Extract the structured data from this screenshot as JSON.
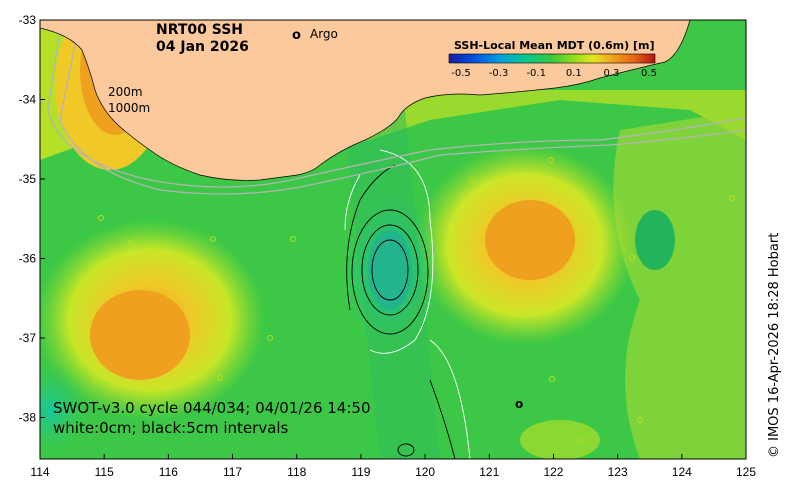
{
  "map": {
    "title_line1": "NRT00 SSH",
    "title_line2": "04 Jan 2026",
    "argo_marker": "o",
    "argo_label": "Argo",
    "contour_200": "200m",
    "contour_1000": "1000m",
    "swot_line": "SWOT-v3.0 cycle 044/034; 04/01/26 14:50",
    "interval_line": "white:0cm; black:5cm intervals",
    "credit": "© IMOS 16-Apr-2026 18:28 Hobart"
  },
  "colorbar": {
    "title": "SSH-Local Mean MDT (0.6m) [m]",
    "ticks": [
      "-0.5",
      "-0.3",
      "-0.1",
      "0.1",
      "0.3",
      "0.5"
    ],
    "stops": [
      "#1a1aa6",
      "#0050e0",
      "#00a0e0",
      "#00c890",
      "#3cc83c",
      "#8cdc1e",
      "#e6e61e",
      "#f0a01e",
      "#e66414",
      "#b41414"
    ]
  },
  "axes": {
    "x_ticks": [
      "114",
      "115",
      "116",
      "117",
      "118",
      "119",
      "120",
      "121",
      "122",
      "123",
      "124",
      "125"
    ],
    "y_ticks": [
      "-33",
      "-34",
      "-35",
      "-36",
      "-37",
      "-38"
    ]
  },
  "colors": {
    "land": "#fbc99b",
    "argo": "#e020e0"
  }
}
